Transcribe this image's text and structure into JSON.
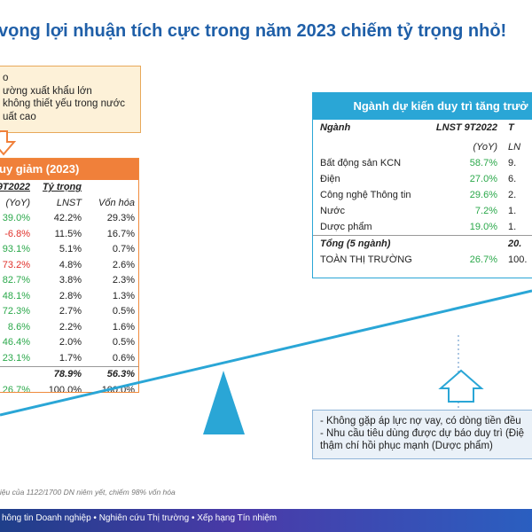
{
  "title": "vọng lợi nhuận tích cực trong năm 2023 chiếm tỷ trọng nhỏ!",
  "left_reasons": [
    "o",
    "ường xuất khẩu lớn",
    "không thiết yếu trong nước",
    "uất cao"
  ],
  "left_table": {
    "header": "uy giảm (2023)",
    "sub": [
      "9T2022",
      "Tỷ trọng",
      ""
    ],
    "sub2": [
      "(YoY)",
      "LNST",
      "Vốn hóa"
    ],
    "rows": [
      {
        "a": "39.0%",
        "b": "42.2%",
        "c": "29.3%",
        "tone": "green"
      },
      {
        "a": "-6.8%",
        "b": "11.5%",
        "c": "16.7%",
        "tone": "red"
      },
      {
        "a": "93.1%",
        "b": "5.1%",
        "c": "0.7%",
        "tone": "green"
      },
      {
        "a": "73.2%",
        "b": "4.8%",
        "c": "2.6%",
        "tone": "red"
      },
      {
        "a": "82.7%",
        "b": "3.8%",
        "c": "2.3%",
        "tone": "green"
      },
      {
        "a": "48.1%",
        "b": "2.8%",
        "c": "1.3%",
        "tone": "green"
      },
      {
        "a": "72.3%",
        "b": "2.7%",
        "c": "0.5%",
        "tone": "green"
      },
      {
        "a": "8.6%",
        "b": "2.2%",
        "c": "1.6%",
        "tone": "green"
      },
      {
        "a": "46.4%",
        "b": "2.0%",
        "c": "0.5%",
        "tone": "green"
      },
      {
        "a": "23.1%",
        "b": "1.7%",
        "c": "0.6%",
        "tone": "green"
      }
    ],
    "total": {
      "a": "",
      "b": "78.9%",
      "c": "56.3%"
    },
    "market": {
      "a": "26.7%",
      "b": "100.0%",
      "c": "100.0%"
    }
  },
  "right_table": {
    "header": "Ngành dự kiến duy trì tăng trưở",
    "col_sector": "Ngành",
    "col_lnst": "LNST 9T2022",
    "col_t": "T",
    "sub_yoy": "(YoY)",
    "sub_l": "LN",
    "rows": [
      {
        "name": "Bất động sản KCN",
        "yoy": "58.7%",
        "c": "9."
      },
      {
        "name": "Điện",
        "yoy": "27.0%",
        "c": "6."
      },
      {
        "name": "Công nghệ Thông tin",
        "yoy": "29.6%",
        "c": "2."
      },
      {
        "name": "Nước",
        "yoy": "7.2%",
        "c": "1."
      },
      {
        "name": "Dược phẩm",
        "yoy": "19.0%",
        "c": "1."
      }
    ],
    "total": {
      "name": "Tổng (5 ngành)",
      "yoy": "",
      "c": "20."
    },
    "market": {
      "name": "TOÀN THỊ TRƯỜNG",
      "yoy": "26.7%",
      "c": "100."
    }
  },
  "note_lines": [
    "- Không gặp áp lực nợ vay, có dòng tiền đều",
    "- Nhu cầu tiêu dùng được dự báo duy trì (Điệ",
    "  thậm chí hồi phục mạnh (Dược phẩm)"
  ],
  "footnote": "liệu của 1122/1700 DN niêm yết, chiếm 98% vốn hóa",
  "footer": "hông tin Doanh nghiệp • Nghiên cứu Thị trường • Xếp hạng Tín nhiệm",
  "colors": {
    "title": "#1f5fa8",
    "orange": "#f0803a",
    "blue": "#2aa6d6",
    "green": "#2aa84a",
    "red": "#e0302a"
  }
}
